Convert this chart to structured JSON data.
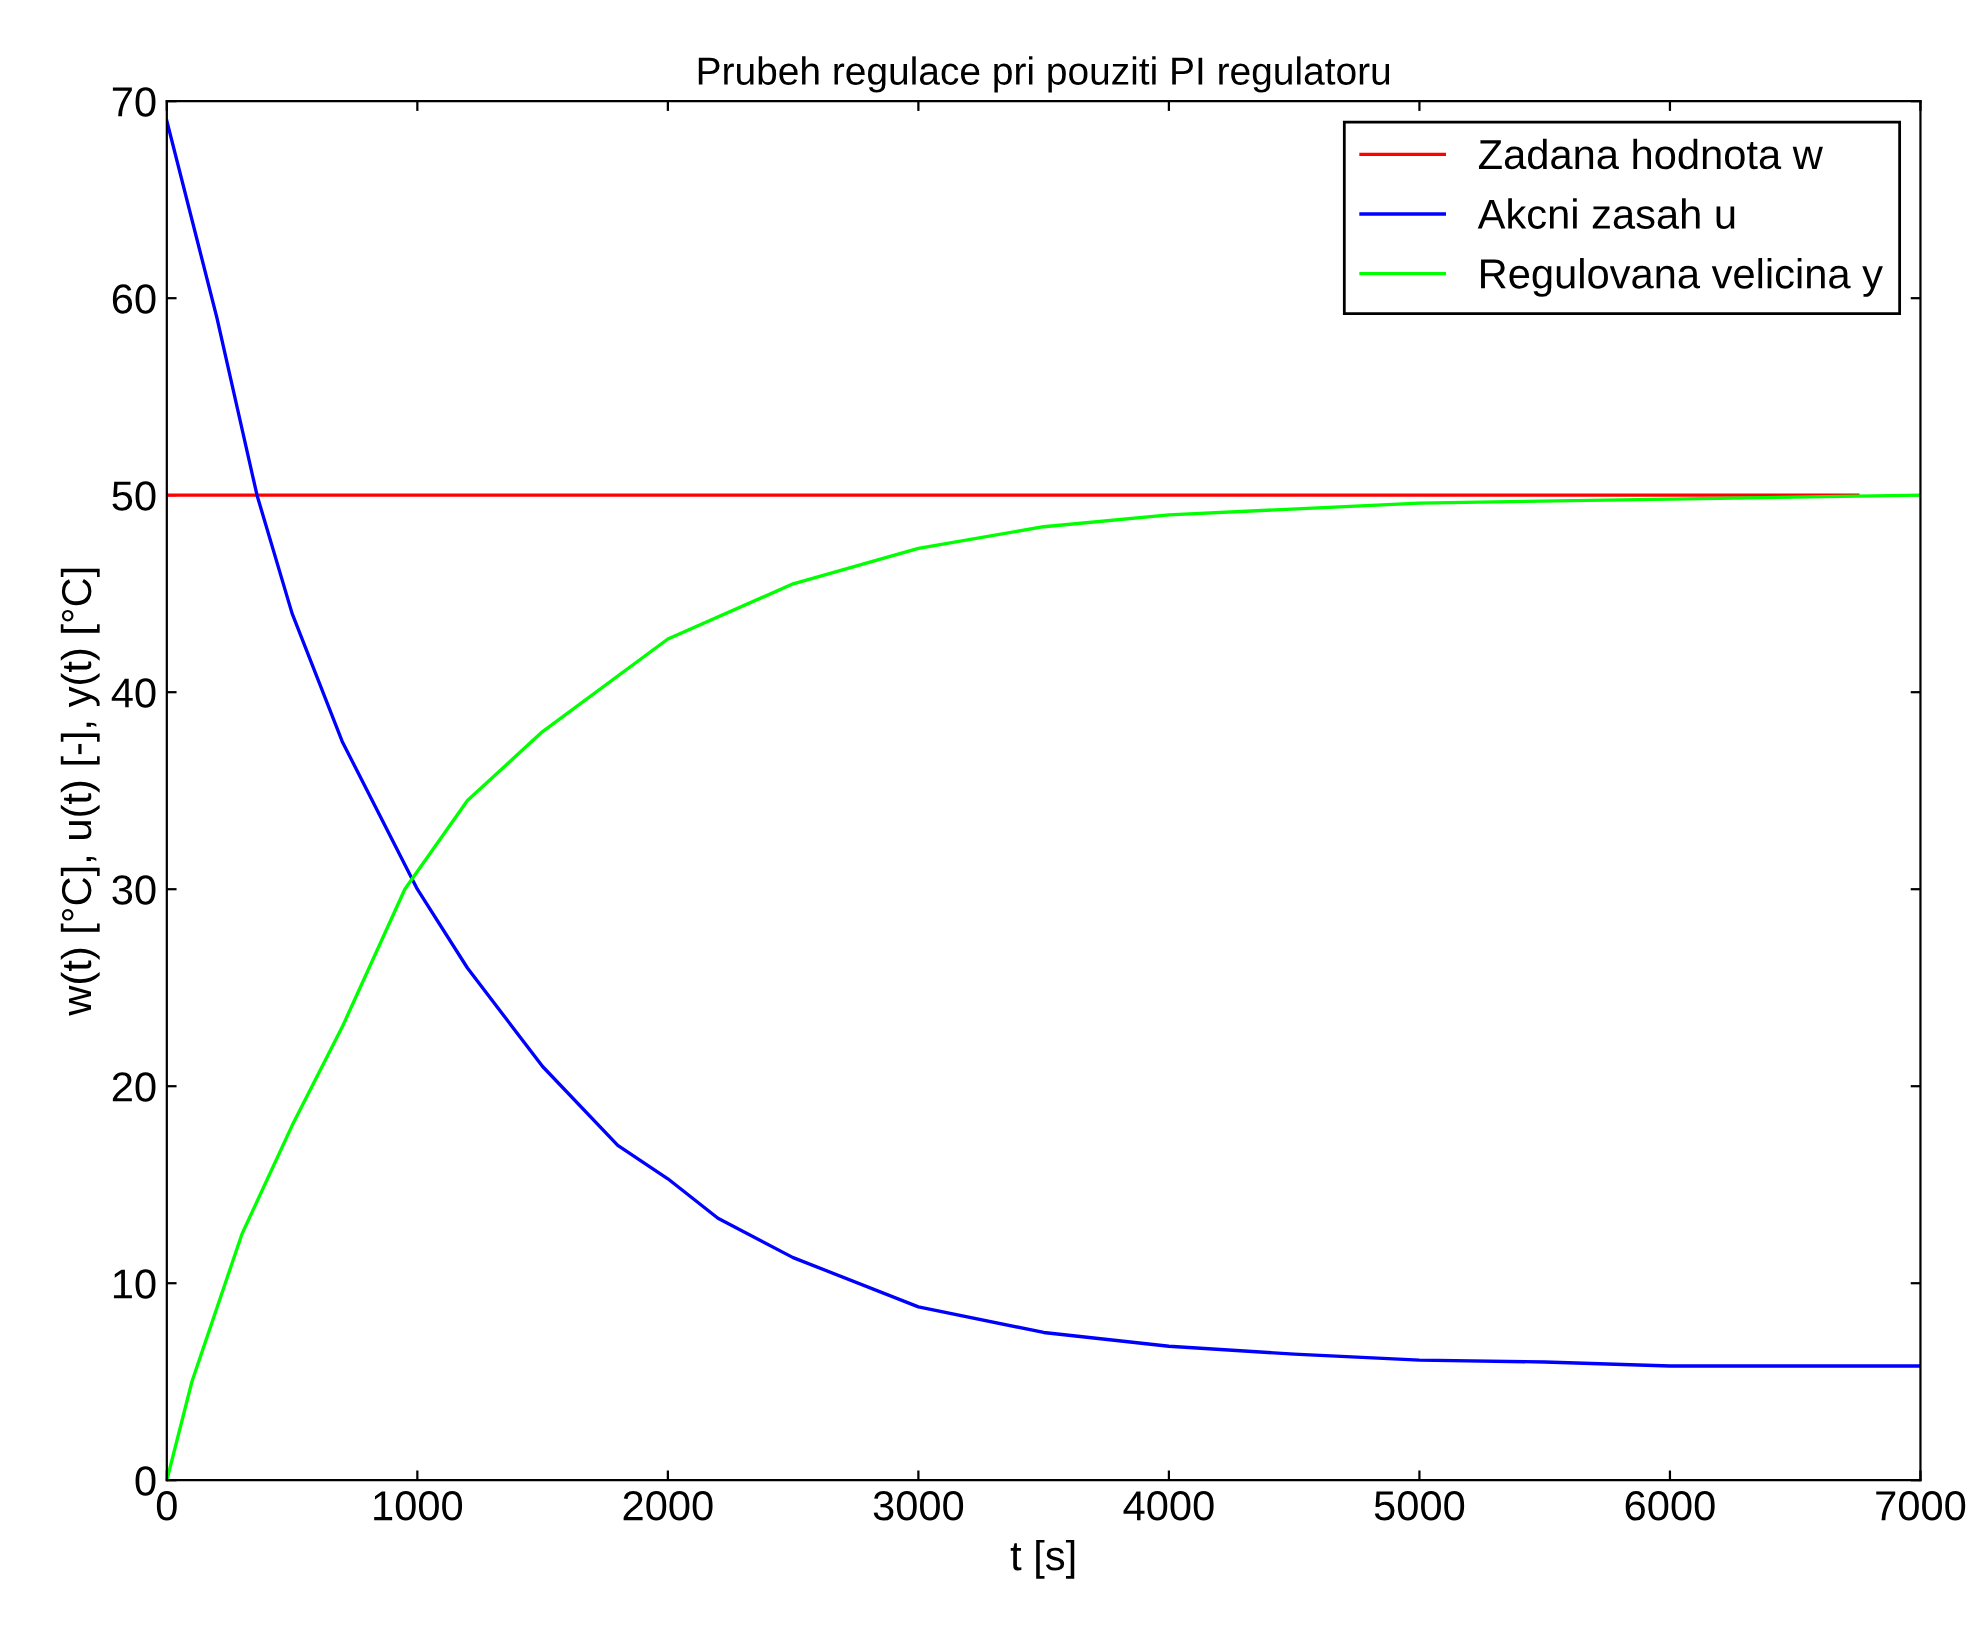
{
  "chart_data": {
    "type": "line",
    "title": "Prubeh regulace pri pouziti PI regulatoru",
    "xlabel": "t [s]",
    "ylabel": "w(t) [°C], u(t) [-], y(t) [°C]",
    "xlim": [
      0,
      7000
    ],
    "ylim": [
      0,
      70
    ],
    "xticks": [
      0,
      1000,
      2000,
      3000,
      4000,
      5000,
      6000,
      7000
    ],
    "yticks": [
      0,
      10,
      20,
      30,
      40,
      50,
      60,
      70
    ],
    "grid": false,
    "legend": "top right",
    "series": [
      {
        "name": "Zadana hodnota w",
        "color": "#ff0000",
        "x": [
          0,
          6750
        ],
        "values": [
          50,
          50
        ]
      },
      {
        "name": "Akcni zasah u",
        "color": "#0000ff",
        "x": [
          0,
          200,
          360,
          500,
          700,
          1000,
          1200,
          1500,
          1800,
          2000,
          2200,
          2500,
          3000,
          3500,
          4000,
          4500,
          5000,
          5500,
          6000,
          7000
        ],
        "values": [
          69,
          59,
          50,
          44,
          37.5,
          30,
          26,
          21,
          17,
          15.3,
          13.3,
          11.3,
          8.8,
          7.5,
          6.8,
          6.4,
          6.1,
          6.0,
          5.8,
          5.8
        ]
      },
      {
        "name": "Regulovana velicina y",
        "color": "#00ff00",
        "x": [
          0,
          100,
          300,
          500,
          700,
          950,
          1200,
          1500,
          2000,
          2500,
          3000,
          3500,
          4000,
          5000,
          6000,
          7000
        ],
        "values": [
          0,
          5,
          12.5,
          18,
          23,
          30,
          34.5,
          38,
          42.7,
          45.5,
          47.3,
          48.4,
          49,
          49.6,
          49.8,
          50
        ]
      }
    ]
  }
}
